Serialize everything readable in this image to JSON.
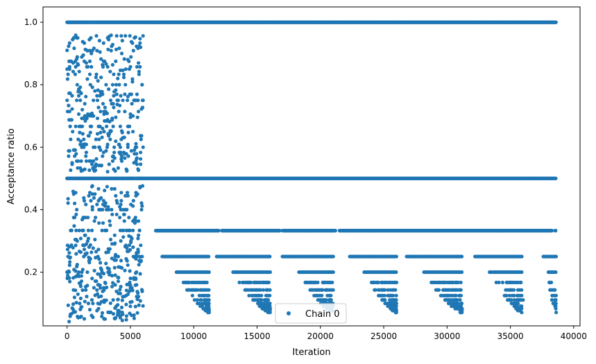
{
  "chart_data": {
    "type": "scatter",
    "title": "",
    "xlabel": "Iteration",
    "ylabel": "Acceptance ratio",
    "xlim": [
      -1900,
      40500
    ],
    "ylim": [
      0.028,
      1.049
    ],
    "xticks": [
      0,
      5000,
      10000,
      15000,
      20000,
      25000,
      30000,
      35000,
      40000
    ],
    "xtick_labels": [
      "0",
      "5000",
      "10000",
      "15000",
      "20000",
      "25000",
      "30000",
      "35000",
      "40000"
    ],
    "yticks": [
      0.2,
      0.4,
      0.6,
      0.8,
      1.0
    ],
    "ytick_labels": [
      "0.2",
      "0.4",
      "0.6",
      "0.8",
      "1.0"
    ],
    "grid": false,
    "legend": {
      "position": "lower-center",
      "entries": [
        "Chain 0"
      ]
    },
    "color": "#1f77b4",
    "series": [
      {
        "name": "Chain 0",
        "description_levels": {
          "early_phase": {
            "x_range": [
              0,
              6000
            ],
            "y_range": [
              0.05,
              1.0
            ]
          },
          "late_phase": {
            "x_range": [
              6000,
              38600
            ],
            "constant_levels": [
              1.0,
              0.5,
              0.333
            ],
            "lower_levels": [
              0.25,
              0.2,
              0.167,
              0.143,
              0.125,
              0.111,
              0.1,
              0.091,
              0.083,
              0.077,
              0.071
            ]
          }
        },
        "x": [
          0,
          200,
          400,
          600,
          800,
          1000,
          1200,
          1400,
          1600,
          1800,
          2000,
          2200,
          2400,
          2600,
          2800,
          3000,
          3200,
          3400,
          3600,
          3800,
          4000,
          4200,
          4400,
          4600,
          4800,
          5000,
          5200,
          5400,
          5600,
          5800,
          7000,
          10000,
          15000,
          20000,
          25000,
          30000,
          35000,
          38600,
          8000,
          12000,
          17000,
          22000,
          27000,
          32000,
          37000,
          9000,
          14000,
          19000,
          24000,
          29000,
          34000,
          10500,
          15500,
          20500,
          25500,
          30500,
          35500,
          11000,
          16000,
          21000,
          26000,
          31000,
          36000
        ],
        "y": [
          0.91,
          0.85,
          0.55,
          0.42,
          0.3,
          0.1,
          0.72,
          0.61,
          0.2,
          0.08,
          0.45,
          0.78,
          0.13,
          0.5,
          0.66,
          0.05,
          0.95,
          0.35,
          0.57,
          0.25,
          0.82,
          0.06,
          0.63,
          0.4,
          0.88,
          0.18,
          0.7,
          0.09,
          0.53,
          0.92,
          1.0,
          1.0,
          1.0,
          1.0,
          1.0,
          1.0,
          1.0,
          1.0,
          0.5,
          0.5,
          0.5,
          0.5,
          0.5,
          0.5,
          0.5,
          0.333,
          0.333,
          0.333,
          0.333,
          0.333,
          0.333,
          0.2,
          0.167,
          0.143,
          0.125,
          0.111,
          0.1,
          0.091,
          0.083,
          0.077,
          0.071,
          0.143,
          0.111
        ]
      }
    ]
  }
}
